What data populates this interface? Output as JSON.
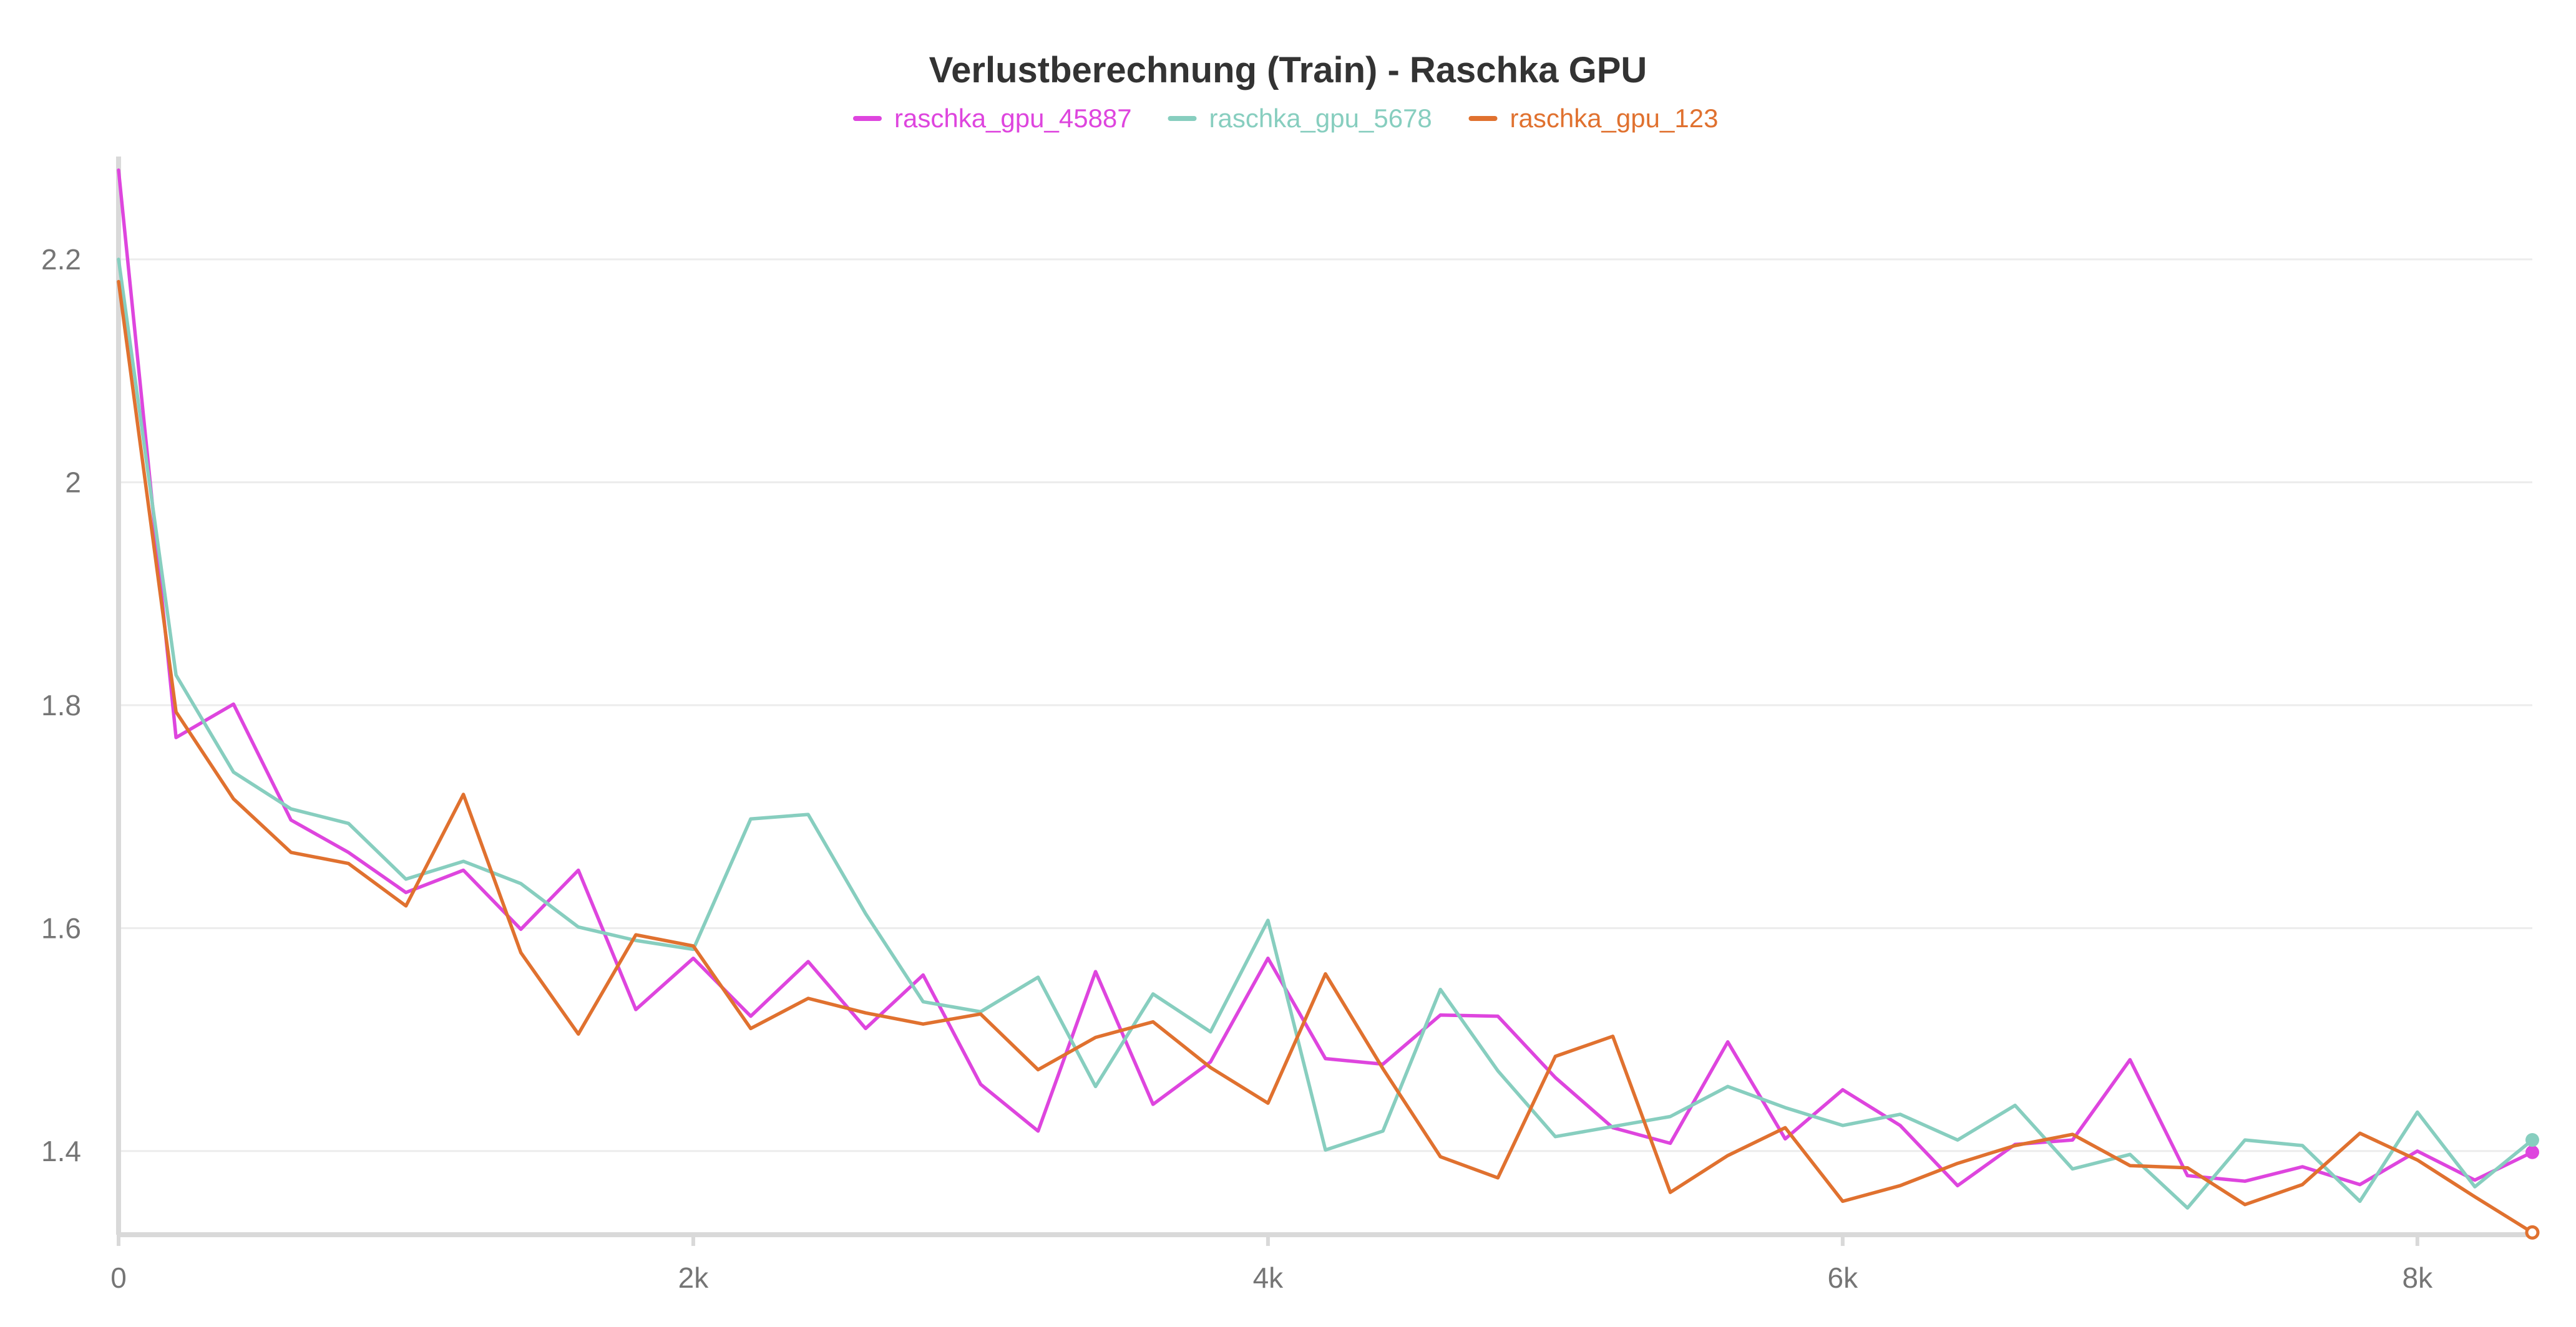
{
  "chart_data": {
    "type": "line",
    "title": "Verlustberechnung (Train) - Raschka GPU",
    "xlabel": "",
    "ylabel": "",
    "xlim": [
      0,
      8400
    ],
    "ylim": [
      1.325,
      2.29
    ],
    "x_ticks": [
      {
        "value": 0,
        "label": "0"
      },
      {
        "value": 2000,
        "label": "2k"
      },
      {
        "value": 4000,
        "label": "4k"
      },
      {
        "value": 6000,
        "label": "6k"
      },
      {
        "value": 8000,
        "label": "8k"
      }
    ],
    "y_ticks": [
      {
        "value": 1.4,
        "label": "1.4"
      },
      {
        "value": 1.6,
        "label": "1.6"
      },
      {
        "value": 1.8,
        "label": "1.8"
      },
      {
        "value": 2.0,
        "label": "2"
      },
      {
        "value": 2.2,
        "label": "2.2"
      }
    ],
    "grid": true,
    "legend_position": "top-center",
    "x": [
      0,
      200,
      400,
      600,
      800,
      1000,
      1200,
      1400,
      1600,
      1800,
      2000,
      2200,
      2400,
      2600,
      2800,
      3000,
      3200,
      3400,
      3600,
      3800,
      4000,
      4200,
      4400,
      4600,
      4800,
      5000,
      5200,
      5400,
      5600,
      5800,
      6000,
      6200,
      6400,
      6600,
      6800,
      7000,
      7200,
      7400,
      7600,
      7800,
      8000,
      8200,
      8400
    ],
    "series": [
      {
        "name": "raschka_gpu_45887",
        "color": "#de45de",
        "end_marker": "filled",
        "values": [
          2.28,
          1.771,
          1.801,
          1.697,
          1.668,
          1.632,
          1.652,
          1.599,
          1.652,
          1.527,
          1.573,
          1.521,
          1.57,
          1.51,
          1.558,
          1.46,
          1.418,
          1.561,
          1.442,
          1.48,
          1.573,
          1.483,
          1.478,
          1.522,
          1.521,
          1.466,
          1.421,
          1.407,
          1.498,
          1.411,
          1.455,
          1.423,
          1.369,
          1.406,
          1.41,
          1.482,
          1.378,
          1.373,
          1.386,
          1.37,
          1.4,
          1.374,
          1.399
        ]
      },
      {
        "name": "raschka_gpu_5678",
        "color": "#87cebf",
        "end_marker": "filled",
        "values": [
          2.2,
          1.827,
          1.74,
          1.707,
          1.694,
          1.644,
          1.66,
          1.64,
          1.601,
          1.589,
          1.581,
          1.698,
          1.702,
          1.613,
          1.534,
          1.525,
          1.556,
          1.458,
          1.541,
          1.507,
          1.607,
          1.401,
          1.418,
          1.545,
          1.472,
          1.413,
          1.422,
          1.431,
          1.458,
          1.439,
          1.423,
          1.433,
          1.41,
          1.441,
          1.384,
          1.397,
          1.349,
          1.41,
          1.405,
          1.355,
          1.435,
          1.368,
          1.41
        ]
      },
      {
        "name": "raschka_gpu_123",
        "color": "#e0712f",
        "end_marker": "hollow",
        "values": [
          2.18,
          1.794,
          1.716,
          1.668,
          1.658,
          1.62,
          1.72,
          1.578,
          1.505,
          1.594,
          1.584,
          1.51,
          1.537,
          1.524,
          1.514,
          1.523,
          1.473,
          1.502,
          1.516,
          1.475,
          1.443,
          1.559,
          1.474,
          1.395,
          1.376,
          1.485,
          1.503,
          1.363,
          1.396,
          1.421,
          1.355,
          1.369,
          1.389,
          1.405,
          1.415,
          1.387,
          1.385,
          1.352,
          1.37,
          1.416,
          1.392,
          1.359,
          1.327
        ]
      }
    ]
  }
}
